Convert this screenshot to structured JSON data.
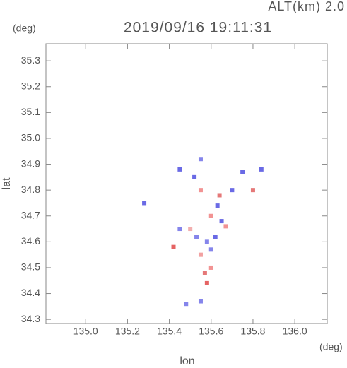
{
  "chart_data": {
    "type": "scatter",
    "title": "2019/09/16 19:11:31",
    "subtitle": "ALT(km) 2.0",
    "x_label": "lon",
    "y_label": "lat",
    "x_unit": "(deg)",
    "y_unit": "(deg)",
    "xlim": [
      134.81,
      136.155
    ],
    "ylim": [
      34.284,
      35.366
    ],
    "xticks": [
      {
        "value": 135.0,
        "label": "135.0"
      },
      135.2,
      135.4,
      135.6,
      135.8,
      {
        "value": 136.0,
        "label": "136.0"
      }
    ],
    "yticks": [
      34.3,
      34.4,
      34.5,
      34.6,
      34.7,
      34.8,
      34.9,
      {
        "value": 35.0,
        "label": "35.0"
      },
      35.1,
      35.2,
      35.3
    ],
    "x": [
      135.58,
      135.42,
      135.6,
      135.55,
      135.6,
      135.62,
      135.5,
      135.45,
      135.65,
      135.6,
      135.64,
      135.7,
      135.52,
      135.55,
      135.8,
      135.84,
      135.75,
      135.55,
      135.45,
      135.28,
      135.48,
      135.55,
      135.57,
      135.53,
      135.67,
      135.58,
      135.63
    ],
    "y": [
      34.44,
      34.58,
      34.5,
      34.55,
      34.57,
      34.62,
      34.65,
      34.65,
      34.68,
      34.7,
      34.78,
      34.8,
      34.85,
      34.8,
      34.8,
      34.88,
      34.87,
      34.92,
      34.88,
      34.75,
      34.36,
      34.37,
      34.48,
      34.62,
      34.66,
      34.6,
      34.74
    ],
    "colors": [
      "#e04848",
      "#e04848",
      "#f08080",
      "#f09090",
      "#7070e8",
      "#5050e0",
      "#f0a0a0",
      "#7070e8",
      "#5050e0",
      "#f08080",
      "#e06060",
      "#5050e0",
      "#5050e0",
      "#f08080",
      "#e06060",
      "#5050e0",
      "#5050e0",
      "#7070e8",
      "#5050e0",
      "#5050e0",
      "#7070e8",
      "#7070e8",
      "#e06060",
      "#7070e8",
      "#f08080",
      "#7070e8",
      "#5050e0"
    ]
  }
}
